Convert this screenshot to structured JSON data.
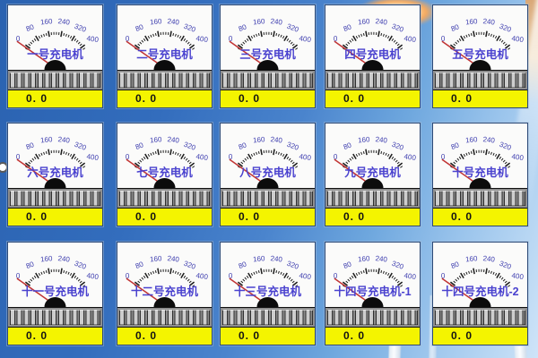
{
  "meters": [
    {
      "name": "一号充电机",
      "value": "0. 0"
    },
    {
      "name": "二号充电机",
      "value": "0. 0"
    },
    {
      "name": "三号充电机",
      "value": "0. 0"
    },
    {
      "name": "四号充电机",
      "value": "0. 0"
    },
    {
      "name": "五号充电机",
      "value": "0. 0"
    },
    {
      "name": "六号充电机",
      "value": "0. 0"
    },
    {
      "name": "七号充电机",
      "value": "0. 0"
    },
    {
      "name": "八号充电机",
      "value": "0. 0"
    },
    {
      "name": "九号充电机",
      "value": "0. 0"
    },
    {
      "name": "十号充电机",
      "value": "0. 0"
    },
    {
      "name": "十一号充电机",
      "value": "0. 0"
    },
    {
      "name": "十二号充电机",
      "value": "0. 0"
    },
    {
      "name": "十三号充电机",
      "value": "0. 0"
    },
    {
      "name": "十四号充电机-1",
      "value": "0. 0"
    },
    {
      "name": "十四号充电机-2",
      "value": "0. 0"
    }
  ],
  "gauge_scale": {
    "tick_labels": [
      "0",
      "80",
      "160",
      "240",
      "320",
      "400"
    ],
    "min": 0,
    "max": 400,
    "needle_value": 0
  },
  "colors": {
    "lcd_bg": "#f4f400",
    "lcd_text": "#141414",
    "needle": "#c13434",
    "meter_name_text": "#4a42cf",
    "scale_text": "#3c3cae",
    "sky_blue": "#3a74c4"
  }
}
